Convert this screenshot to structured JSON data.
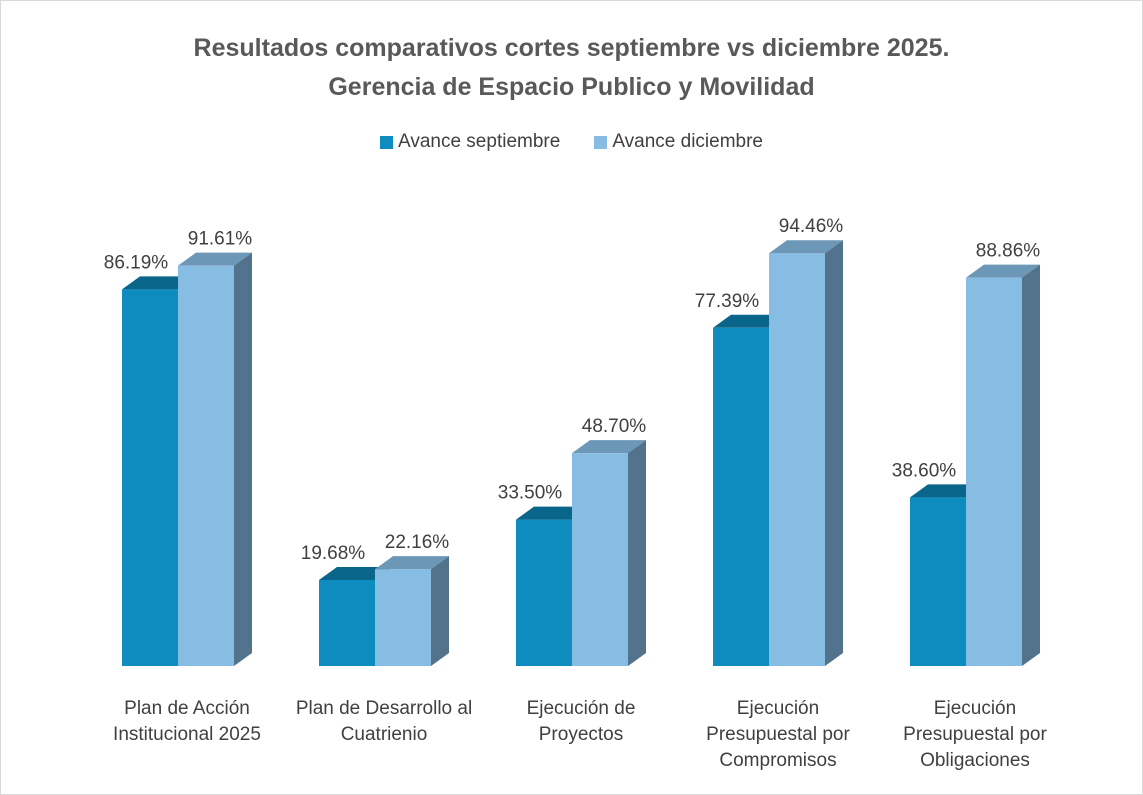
{
  "chart_data": {
    "type": "bar3d",
    "title": "Resultados comparativos cortes septiembre vs diciembre 2025.",
    "subtitle": "Gerencia de Espacio Publico y Movilidad",
    "categories": [
      "Plan de Acción Institucional 2025",
      "Plan de Desarrollo al Cuatrienio",
      "Ejecución de Proyectos",
      "Ejecución Presupuestal por Compromisos",
      "Ejecución Presupuestal por Obligaciones"
    ],
    "series": [
      {
        "name": "Avance septiembre",
        "color": "#0e8cbf",
        "values": [
          86.19,
          19.68,
          33.5,
          77.39,
          38.6
        ],
        "value_labels": [
          "86.19%",
          "19.68%",
          "33.50%",
          "77.39%",
          "38.60%"
        ]
      },
      {
        "name": "Avance diciembre",
        "color": "#88bde3",
        "values": [
          91.61,
          22.16,
          48.7,
          94.46,
          88.86
        ],
        "value_labels": [
          "91.61%",
          "22.16%",
          "48.70%",
          "94.46%",
          "88.86%"
        ]
      }
    ],
    "ylim": [
      0,
      100
    ],
    "legend": "top"
  }
}
